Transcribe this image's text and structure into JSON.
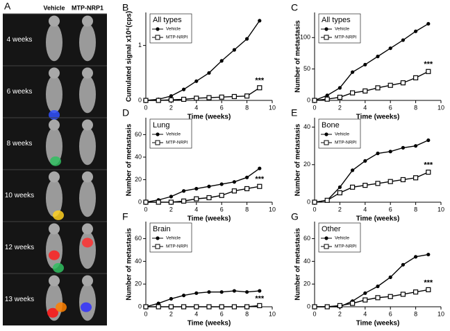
{
  "panel_a": {
    "label": "A",
    "columns": [
      "Vehicle",
      "MTP-NRP1"
    ],
    "rows": [
      "4 weeks",
      "6 weeks",
      "8 weeks",
      "10 weeks",
      "12 weeks",
      "13 weeks"
    ]
  },
  "chart_data": [
    {
      "type": "line",
      "panel": "B",
      "title": "All types",
      "xlabel": "Time (weeks)",
      "ylabel": "Cumulated signal x10⁶(cps)",
      "x": [
        0,
        1,
        2,
        3,
        4,
        5,
        6,
        7,
        8,
        9
      ],
      "xlim": [
        0,
        10
      ],
      "xticks": [
        0,
        2,
        4,
        6,
        8,
        10
      ],
      "ylim": [
        0,
        1.6
      ],
      "yticks": [
        0,
        1
      ],
      "series": [
        {
          "name": "Vehicle",
          "color": "#000000",
          "marker": "circle",
          "values": [
            0,
            0.02,
            0.08,
            0.2,
            0.35,
            0.5,
            0.72,
            0.92,
            1.12,
            1.45
          ]
        },
        {
          "name": "MTP-NRPI",
          "color": "#000000",
          "marker": "square",
          "values": [
            0,
            0,
            0.01,
            0.02,
            0.04,
            0.05,
            0.06,
            0.07,
            0.08,
            0.23
          ]
        }
      ],
      "annotation": "***"
    },
    {
      "type": "line",
      "panel": "C",
      "title": "All types",
      "xlabel": "Time (weeks)",
      "ylabel": "Number of metastasis",
      "x": [
        0,
        1,
        2,
        3,
        4,
        5,
        6,
        7,
        8,
        9
      ],
      "xlim": [
        0,
        10
      ],
      "xticks": [
        0,
        2,
        4,
        6,
        8,
        10
      ],
      "ylim": [
        0,
        140
      ],
      "yticks": [
        0,
        50,
        100
      ],
      "series": [
        {
          "name": "Vehicle",
          "color": "#000000",
          "marker": "circle",
          "values": [
            0,
            8,
            20,
            45,
            57,
            70,
            83,
            96,
            110,
            122
          ]
        },
        {
          "name": "MTP-NRPI",
          "color": "#000000",
          "marker": "square",
          "values": [
            0,
            2,
            5,
            12,
            15,
            20,
            24,
            28,
            36,
            46
          ]
        }
      ],
      "annotation": "***"
    },
    {
      "type": "line",
      "panel": "D",
      "title": "Lung",
      "xlabel": "Time (weeks)",
      "ylabel": "Number of metastasis",
      "x": [
        0,
        1,
        2,
        3,
        4,
        5,
        6,
        7,
        8,
        9
      ],
      "xlim": [
        0,
        10
      ],
      "xticks": [
        0,
        2,
        4,
        6,
        8,
        10
      ],
      "ylim": [
        0,
        75
      ],
      "yticks": [
        0,
        20,
        40,
        60
      ],
      "series": [
        {
          "name": "Vehicle",
          "color": "#000000",
          "marker": "circle",
          "values": [
            0,
            2,
            5,
            10,
            12,
            14,
            16,
            18,
            22,
            30
          ]
        },
        {
          "name": "MTP-NRPI",
          "color": "#000000",
          "marker": "square",
          "values": [
            0,
            0,
            0,
            1,
            3,
            4,
            6,
            10,
            12,
            14
          ]
        }
      ],
      "annotation": "***"
    },
    {
      "type": "line",
      "panel": "E",
      "title": "Bone",
      "xlabel": "Time (weeks)",
      "ylabel": "Number of metastasis",
      "x": [
        0,
        1,
        2,
        3,
        4,
        5,
        6,
        7,
        8,
        9
      ],
      "xlim": [
        0,
        10
      ],
      "xticks": [
        0,
        2,
        4,
        6,
        8,
        10
      ],
      "ylim": [
        0,
        45
      ],
      "yticks": [
        0,
        20,
        40
      ],
      "series": [
        {
          "name": "Vehicle",
          "color": "#000000",
          "marker": "circle",
          "values": [
            0,
            1,
            8,
            17,
            22,
            26,
            27,
            29,
            30,
            33
          ]
        },
        {
          "name": "MTP-NRPI",
          "color": "#000000",
          "marker": "square",
          "values": [
            0,
            1,
            5,
            8,
            9,
            10,
            11,
            12,
            13,
            16
          ]
        }
      ],
      "annotation": "***"
    },
    {
      "type": "line",
      "panel": "F",
      "title": "Brain",
      "xlabel": "Time (weeks)",
      "ylabel": "Number of metastasis",
      "x": [
        0,
        1,
        2,
        3,
        4,
        5,
        6,
        7,
        8,
        9
      ],
      "xlim": [
        0,
        10
      ],
      "xticks": [
        0,
        2,
        4,
        6,
        8,
        10
      ],
      "ylim": [
        0,
        75
      ],
      "yticks": [
        0,
        20,
        40,
        60
      ],
      "series": [
        {
          "name": "Vehicle",
          "color": "#000000",
          "marker": "circle",
          "values": [
            0,
            3,
            7,
            10,
            12,
            13,
            13,
            14,
            13,
            14
          ]
        },
        {
          "name": "MTP-NRPI",
          "color": "#000000",
          "marker": "square",
          "values": [
            0,
            0,
            0,
            0,
            0,
            0,
            0,
            0,
            0,
            1
          ]
        }
      ],
      "annotation": "***"
    },
    {
      "type": "line",
      "panel": "G",
      "title": "Other",
      "xlabel": "Time (weeks)",
      "ylabel": "Number of  metastasis",
      "x": [
        0,
        1,
        2,
        3,
        4,
        5,
        6,
        7,
        8,
        9
      ],
      "xlim": [
        0,
        10
      ],
      "xticks": [
        0,
        2,
        4,
        6,
        8,
        10
      ],
      "ylim": [
        0,
        75
      ],
      "yticks": [
        0,
        20,
        40,
        60
      ],
      "series": [
        {
          "name": "Vehicle",
          "color": "#000000",
          "marker": "circle",
          "values": [
            0,
            0,
            0,
            5,
            12,
            18,
            26,
            37,
            44,
            46
          ]
        },
        {
          "name": "MTP-NRPI",
          "color": "#000000",
          "marker": "square",
          "values": [
            0,
            0,
            1,
            3,
            6,
            8,
            9,
            11,
            13,
            15
          ]
        }
      ],
      "annotation": "***"
    }
  ]
}
